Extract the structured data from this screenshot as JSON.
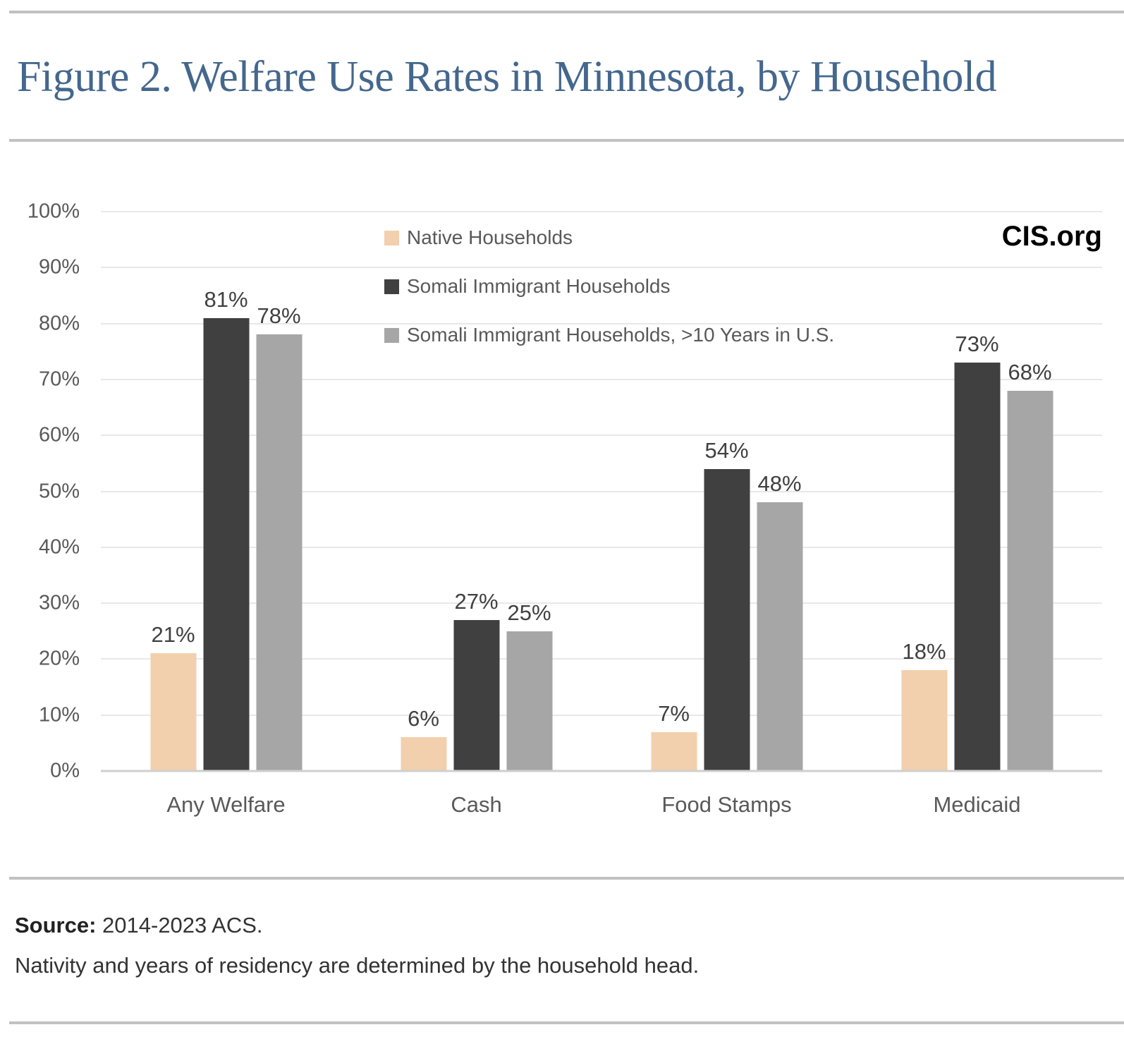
{
  "header": {
    "title": "Figure 2. Welfare Use Rates in Minnesota, by Household"
  },
  "branding": {
    "label": "CIS.org"
  },
  "chart_data": {
    "type": "bar",
    "title": "Figure 2. Welfare Use Rates in Minnesota, by Household",
    "categories": [
      "Any Welfare",
      "Cash",
      "Food Stamps",
      "Medicaid"
    ],
    "series": [
      {
        "name": "Native Households",
        "color": "#f2cfad",
        "values": [
          21,
          6,
          7,
          18
        ]
      },
      {
        "name": "Somali Immigrant Households",
        "color": "#404040",
        "values": [
          81,
          27,
          54,
          73
        ]
      },
      {
        "name": "Somali Immigrant Households, >10 Years in U.S.",
        "color": "#a6a6a6",
        "values": [
          78,
          25,
          48,
          68
        ]
      }
    ],
    "ylim": [
      0,
      100
    ],
    "yticks": [
      0,
      10,
      20,
      30,
      40,
      50,
      60,
      70,
      80,
      90,
      100
    ],
    "ytick_format": "percent",
    "value_label_format": "percent",
    "xlabel": "",
    "ylabel": "",
    "grid": true,
    "legend_position": "upper-center-left"
  },
  "footer": {
    "source_label": "Source:",
    "source_text": " 2014-2023 ACS.",
    "note": "Nativity and years of residency are determined by the household head."
  },
  "colors": {
    "title": "#44678d",
    "axis_text": "#595959",
    "value_label": "#404040",
    "rule": "#c1c1c1",
    "gridline": "#e8e8e8",
    "baseline": "#cfcfcf"
  }
}
